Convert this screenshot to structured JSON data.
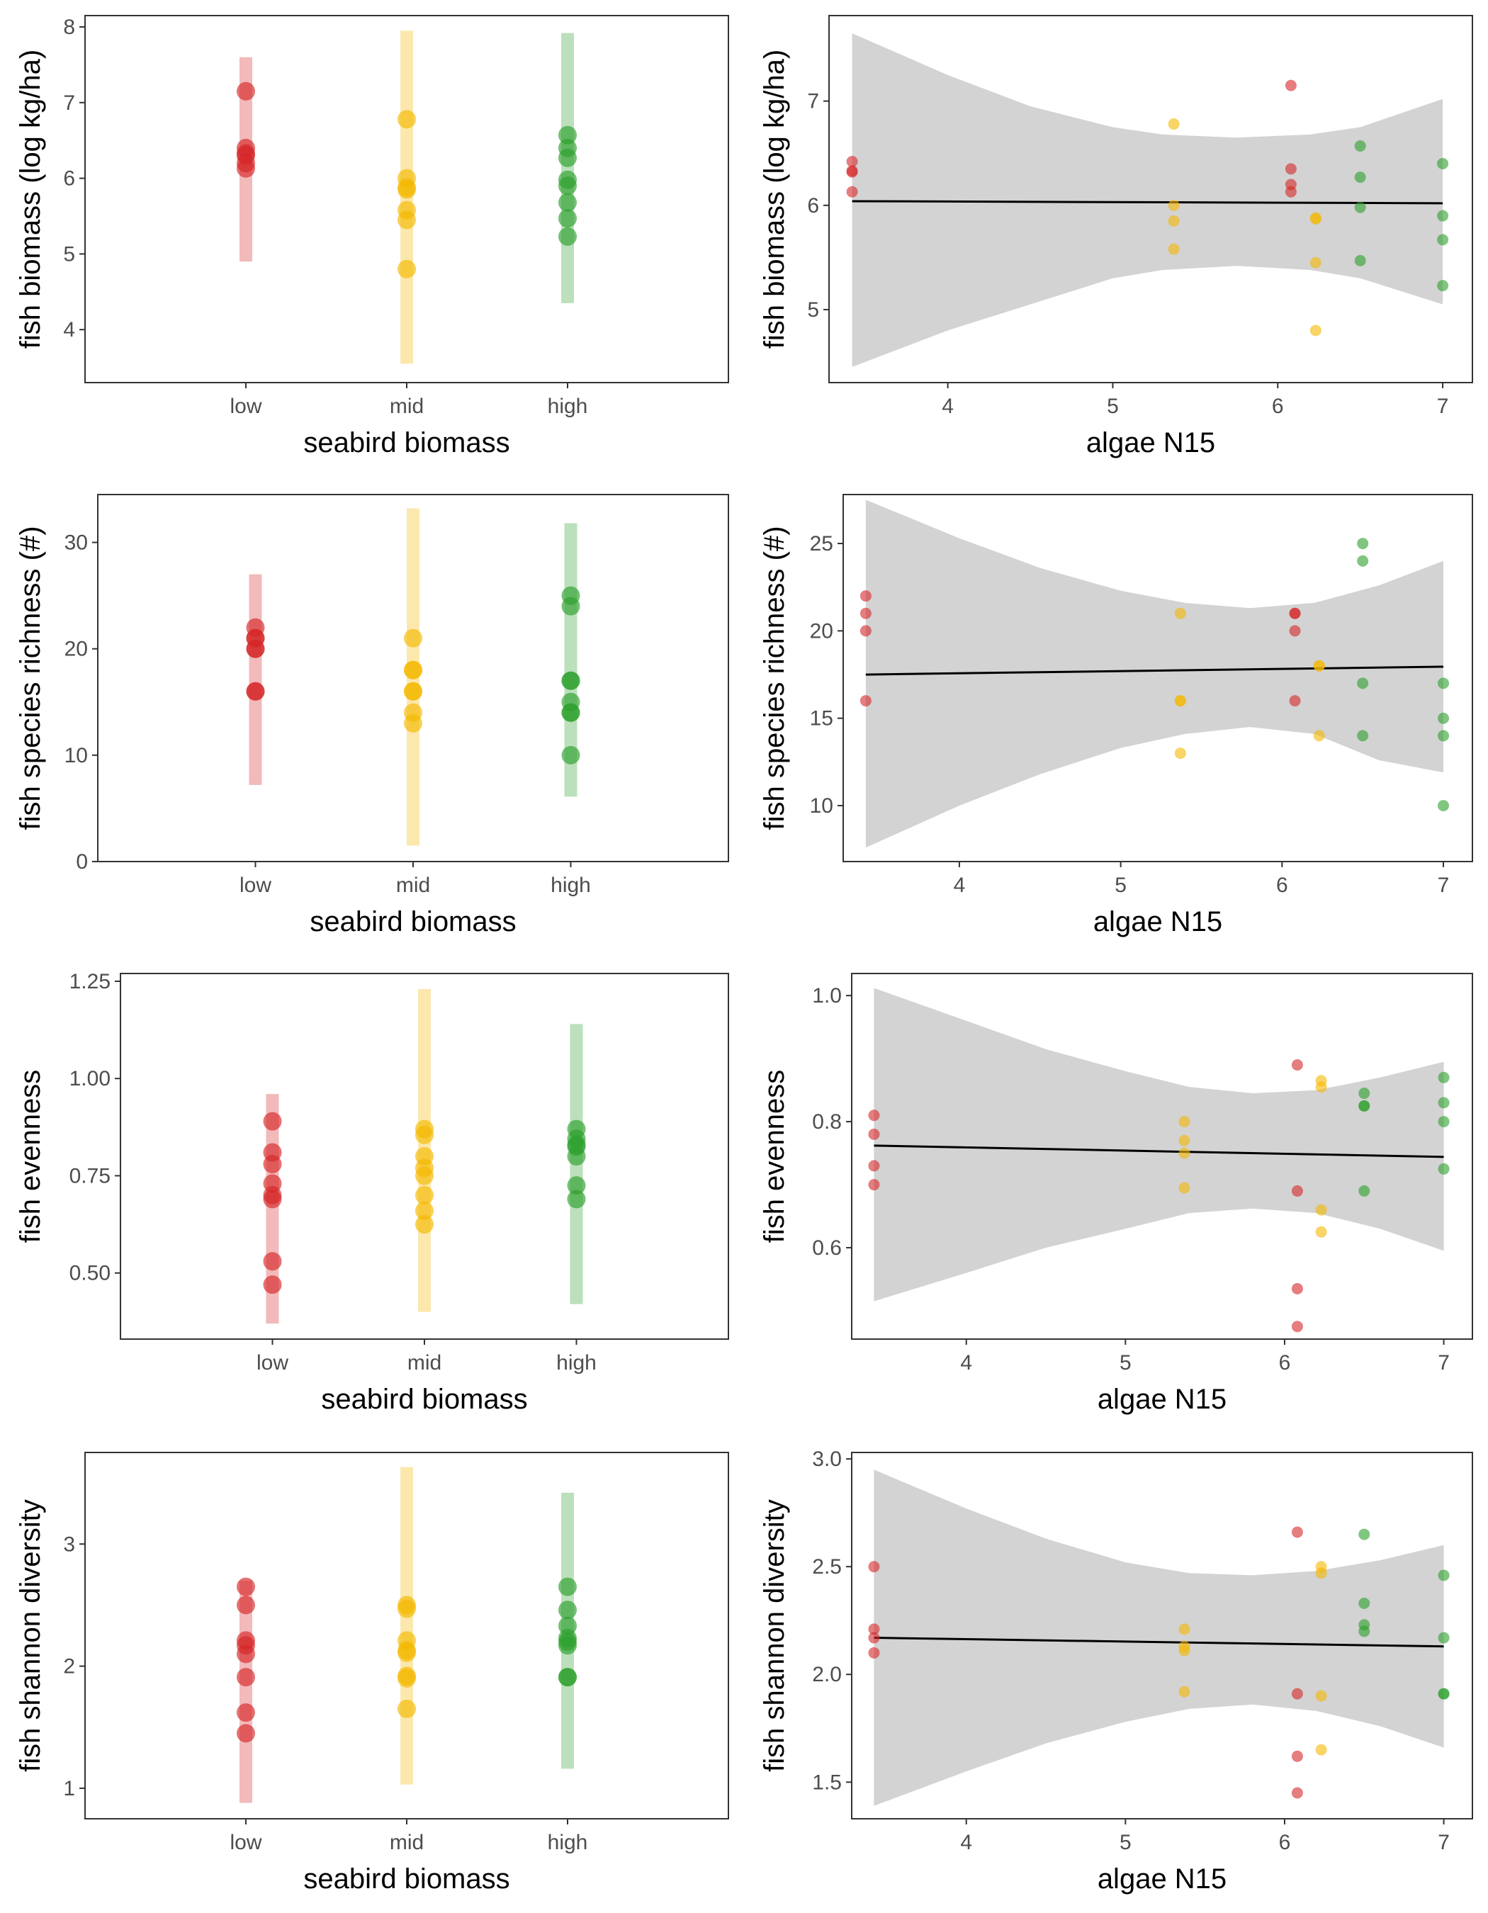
{
  "colors": {
    "low": "#d62728",
    "mid": "#f5b800",
    "high": "#2ca02c",
    "ribbon": "#d3d3d3",
    "fit": "#000000"
  },
  "chart_data": [
    {
      "id": "bio-cat",
      "type": "scatter",
      "xlabel": "seabird biomass",
      "ylabel": "fish biomass (log kg/ha)",
      "categories": [
        "low",
        "mid",
        "high"
      ],
      "ylim": [
        3.3,
        8.15
      ],
      "yticks": [
        4,
        5,
        6,
        7,
        8
      ],
      "intervals": [
        [
          4.9,
          7.6
        ],
        [
          3.55,
          7.95
        ],
        [
          4.35,
          7.92
        ]
      ],
      "series": [
        {
          "group": "low",
          "values": [
            7.15,
            6.4,
            6.33,
            6.3,
            6.2,
            6.13
          ]
        },
        {
          "group": "mid",
          "values": [
            6.78,
            6.0,
            5.88,
            5.85,
            5.58,
            5.45,
            4.8
          ]
        },
        {
          "group": "high",
          "values": [
            6.57,
            6.4,
            6.27,
            5.98,
            5.9,
            5.68,
            5.47,
            5.23
          ]
        }
      ]
    },
    {
      "id": "bio-n15",
      "type": "scatter",
      "xlabel": "algae N15",
      "ylabel": "fish biomass (log kg/ha)",
      "xlim": [
        3.28,
        7.18
      ],
      "xticks": [
        4,
        5,
        6,
        7
      ],
      "ylim": [
        4.3,
        7.82
      ],
      "yticks": [
        5,
        6,
        7
      ],
      "fit": {
        "x": [
          3.42,
          7.0
        ],
        "y": [
          6.04,
          6.02
        ]
      },
      "ribbon": [
        [
          3.42,
          4.45,
          7.65
        ],
        [
          4.0,
          4.8,
          7.25
        ],
        [
          4.5,
          5.05,
          6.95
        ],
        [
          5.0,
          5.3,
          6.75
        ],
        [
          5.3,
          5.38,
          6.68
        ],
        [
          5.75,
          5.42,
          6.65
        ],
        [
          6.2,
          5.38,
          6.68
        ],
        [
          6.5,
          5.3,
          6.75
        ],
        [
          7.0,
          5.05,
          7.02
        ]
      ],
      "series": [
        {
          "group": "low",
          "points": [
            [
              3.42,
              6.42
            ],
            [
              3.42,
              6.33
            ],
            [
              3.42,
              6.32
            ],
            [
              3.42,
              6.13
            ],
            [
              6.08,
              7.15
            ],
            [
              6.08,
              6.35
            ],
            [
              6.08,
              6.2
            ],
            [
              6.08,
              6.13
            ]
          ]
        },
        {
          "group": "mid",
          "points": [
            [
              5.37,
              6.78
            ],
            [
              5.37,
              6.0
            ],
            [
              5.37,
              5.85
            ],
            [
              5.37,
              5.58
            ],
            [
              6.23,
              5.88
            ],
            [
              6.23,
              5.87
            ],
            [
              6.23,
              5.45
            ],
            [
              6.23,
              4.8
            ]
          ]
        },
        {
          "group": "high",
          "points": [
            [
              6.5,
              6.57
            ],
            [
              6.5,
              6.27
            ],
            [
              6.5,
              5.98
            ],
            [
              6.5,
              5.47
            ],
            [
              7.0,
              6.4
            ],
            [
              7.0,
              5.9
            ],
            [
              7.0,
              5.67
            ],
            [
              7.0,
              5.23
            ]
          ]
        }
      ]
    },
    {
      "id": "rich-cat",
      "type": "scatter",
      "xlabel": "seabird biomass",
      "ylabel": "fish species richness (#)",
      "categories": [
        "low",
        "mid",
        "high"
      ],
      "ylim": [
        0,
        34.5
      ],
      "yticks": [
        0,
        10,
        20,
        30
      ],
      "intervals": [
        [
          7.2,
          27
        ],
        [
          1.5,
          33.2
        ],
        [
          6.1,
          31.8
        ]
      ],
      "series": [
        {
          "group": "low",
          "values": [
            22,
            21,
            21,
            20,
            20,
            16,
            16
          ]
        },
        {
          "group": "mid",
          "values": [
            21,
            18,
            18,
            16,
            16,
            14,
            13
          ]
        },
        {
          "group": "high",
          "values": [
            25,
            24,
            17,
            17,
            15,
            14,
            14,
            10
          ]
        }
      ]
    },
    {
      "id": "rich-n15",
      "type": "scatter",
      "xlabel": "algae N15",
      "ylabel": "fish species richness (#)",
      "xlim": [
        3.28,
        7.18
      ],
      "xticks": [
        4,
        5,
        6,
        7
      ],
      "ylim": [
        6.8,
        27.8
      ],
      "yticks": [
        10,
        15,
        20,
        25
      ],
      "fit": {
        "x": [
          3.42,
          7.0
        ],
        "y": [
          17.5,
          17.95
        ]
      },
      "ribbon": [
        [
          3.42,
          7.6,
          27.5
        ],
        [
          4.0,
          10.0,
          25.3
        ],
        [
          4.5,
          11.8,
          23.6
        ],
        [
          5.0,
          13.3,
          22.3
        ],
        [
          5.4,
          14.1,
          21.6
        ],
        [
          5.8,
          14.5,
          21.3
        ],
        [
          6.2,
          14.1,
          21.6
        ],
        [
          6.6,
          12.6,
          22.6
        ],
        [
          7.0,
          11.9,
          24.0
        ]
      ],
      "series": [
        {
          "group": "low",
          "points": [
            [
              3.42,
              22
            ],
            [
              3.42,
              21
            ],
            [
              3.42,
              20
            ],
            [
              3.42,
              16
            ],
            [
              6.08,
              21
            ],
            [
              6.08,
              21
            ],
            [
              6.08,
              20
            ],
            [
              6.08,
              16
            ]
          ]
        },
        {
          "group": "mid",
          "points": [
            [
              5.37,
              21
            ],
            [
              5.37,
              16
            ],
            [
              5.37,
              16
            ],
            [
              5.37,
              13
            ],
            [
              6.23,
              18
            ],
            [
              6.23,
              18
            ],
            [
              6.23,
              14
            ]
          ]
        },
        {
          "group": "high",
          "points": [
            [
              6.5,
              25
            ],
            [
              6.5,
              24
            ],
            [
              6.5,
              17
            ],
            [
              6.5,
              14
            ],
            [
              7.0,
              17
            ],
            [
              7.0,
              15
            ],
            [
              7.0,
              14
            ],
            [
              7.0,
              10
            ]
          ]
        }
      ]
    },
    {
      "id": "even-cat",
      "type": "scatter",
      "xlabel": "seabird biomass",
      "ylabel": "fish evenness",
      "categories": [
        "low",
        "mid",
        "high"
      ],
      "ylim": [
        0.33,
        1.27
      ],
      "yticks": [
        0.5,
        0.75,
        1.0,
        1.25
      ],
      "ytick_labels": [
        "0.50",
        "0.75",
        "1.00",
        "1.25"
      ],
      "intervals": [
        [
          0.37,
          0.96
        ],
        [
          0.4,
          1.23
        ],
        [
          0.42,
          1.14
        ]
      ],
      "series": [
        {
          "group": "low",
          "values": [
            0.89,
            0.81,
            0.78,
            0.73,
            0.7,
            0.69,
            0.53,
            0.47
          ]
        },
        {
          "group": "mid",
          "values": [
            0.87,
            0.855,
            0.8,
            0.77,
            0.75,
            0.7,
            0.66,
            0.625
          ]
        },
        {
          "group": "high",
          "values": [
            0.87,
            0.845,
            0.83,
            0.825,
            0.8,
            0.725,
            0.69
          ]
        }
      ]
    },
    {
      "id": "even-n15",
      "type": "scatter",
      "xlabel": "algae N15",
      "ylabel": "fish evenness",
      "xlim": [
        3.28,
        7.18
      ],
      "xticks": [
        4,
        5,
        6,
        7
      ],
      "ylim": [
        0.455,
        1.035
      ],
      "yticks": [
        0.6,
        0.8,
        1.0
      ],
      "ytick_labels": [
        "0.6",
        "0.8",
        "1.0"
      ],
      "fit": {
        "x": [
          3.42,
          7.0
        ],
        "y": [
          0.762,
          0.744
        ]
      },
      "ribbon": [
        [
          3.42,
          0.515,
          1.012
        ],
        [
          4.0,
          0.56,
          0.96
        ],
        [
          4.5,
          0.6,
          0.915
        ],
        [
          5.0,
          0.63,
          0.88
        ],
        [
          5.4,
          0.655,
          0.855
        ],
        [
          5.8,
          0.662,
          0.845
        ],
        [
          6.2,
          0.655,
          0.85
        ],
        [
          6.6,
          0.63,
          0.87
        ],
        [
          7.0,
          0.595,
          0.895
        ]
      ],
      "series": [
        {
          "group": "low",
          "points": [
            [
              3.42,
              0.81
            ],
            [
              3.42,
              0.78
            ],
            [
              3.42,
              0.73
            ],
            [
              3.42,
              0.7
            ],
            [
              6.08,
              0.89
            ],
            [
              6.08,
              0.69
            ],
            [
              6.08,
              0.535
            ],
            [
              6.08,
              0.475
            ]
          ]
        },
        {
          "group": "mid",
          "points": [
            [
              5.37,
              0.8
            ],
            [
              5.37,
              0.77
            ],
            [
              5.37,
              0.75
            ],
            [
              5.37,
              0.695
            ],
            [
              6.23,
              0.865
            ],
            [
              6.23,
              0.855
            ],
            [
              6.23,
              0.66
            ],
            [
              6.23,
              0.625
            ]
          ]
        },
        {
          "group": "high",
          "points": [
            [
              6.5,
              0.845
            ],
            [
              6.5,
              0.825
            ],
            [
              6.5,
              0.825
            ],
            [
              6.5,
              0.69
            ],
            [
              7.0,
              0.87
            ],
            [
              7.0,
              0.83
            ],
            [
              7.0,
              0.8
            ],
            [
              7.0,
              0.725
            ]
          ]
        }
      ]
    },
    {
      "id": "shan-cat",
      "type": "scatter",
      "xlabel": "seabird biomass",
      "ylabel": "fish shannon diversity",
      "categories": [
        "low",
        "mid",
        "high"
      ],
      "ylim": [
        0.75,
        3.75
      ],
      "yticks": [
        1,
        2,
        3
      ],
      "intervals": [
        [
          0.88,
          2.7
        ],
        [
          1.03,
          3.63
        ],
        [
          1.16,
          3.42
        ]
      ],
      "series": [
        {
          "group": "low",
          "values": [
            2.65,
            2.5,
            2.21,
            2.17,
            2.1,
            1.91,
            1.62,
            1.45
          ]
        },
        {
          "group": "mid",
          "values": [
            2.5,
            2.47,
            2.21,
            2.13,
            2.11,
            1.92,
            1.9,
            1.65
          ]
        },
        {
          "group": "high",
          "values": [
            2.65,
            2.46,
            2.33,
            2.23,
            2.2,
            2.17,
            1.91,
            1.91
          ]
        }
      ]
    },
    {
      "id": "shan-n15",
      "type": "scatter",
      "xlabel": "algae N15",
      "ylabel": "fish shannon diversity",
      "xlim": [
        3.28,
        7.18
      ],
      "xticks": [
        4,
        5,
        6,
        7
      ],
      "ylim": [
        1.33,
        3.03
      ],
      "yticks": [
        1.5,
        2.0,
        2.5,
        3.0
      ],
      "ytick_labels": [
        "1.5",
        "2.0",
        "2.5",
        "3.0"
      ],
      "fit": {
        "x": [
          3.42,
          7.0
        ],
        "y": [
          2.17,
          2.13
        ]
      },
      "ribbon": [
        [
          3.42,
          1.39,
          2.95
        ],
        [
          4.0,
          1.55,
          2.77
        ],
        [
          4.5,
          1.68,
          2.63
        ],
        [
          5.0,
          1.78,
          2.52
        ],
        [
          5.4,
          1.84,
          2.47
        ],
        [
          5.8,
          1.86,
          2.46
        ],
        [
          6.2,
          1.83,
          2.48
        ],
        [
          6.6,
          1.76,
          2.53
        ],
        [
          7.0,
          1.66,
          2.6
        ]
      ],
      "series": [
        {
          "group": "low",
          "points": [
            [
              3.42,
              2.5
            ],
            [
              3.42,
              2.21
            ],
            [
              3.42,
              2.17
            ],
            [
              3.42,
              2.1
            ],
            [
              6.08,
              2.66
            ],
            [
              6.08,
              1.91
            ],
            [
              6.08,
              1.62
            ],
            [
              6.08,
              1.45
            ]
          ]
        },
        {
          "group": "mid",
          "points": [
            [
              5.37,
              2.21
            ],
            [
              5.37,
              2.13
            ],
            [
              5.37,
              2.11
            ],
            [
              5.37,
              1.92
            ],
            [
              6.23,
              2.5
            ],
            [
              6.23,
              2.47
            ],
            [
              6.23,
              1.9
            ],
            [
              6.23,
              1.65
            ]
          ]
        },
        {
          "group": "high",
          "points": [
            [
              6.5,
              2.65
            ],
            [
              6.5,
              2.33
            ],
            [
              6.5,
              2.23
            ],
            [
              6.5,
              2.2
            ],
            [
              7.0,
              2.46
            ],
            [
              7.0,
              2.17
            ],
            [
              7.0,
              1.91
            ],
            [
              7.0,
              1.91
            ]
          ]
        }
      ]
    }
  ]
}
